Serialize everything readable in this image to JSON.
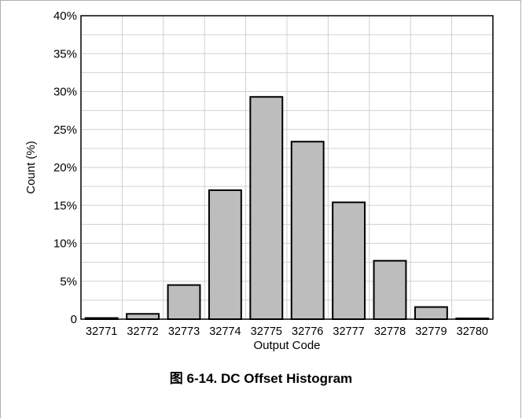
{
  "chart_data": {
    "type": "bar",
    "categories": [
      "32771",
      "32772",
      "32773",
      "32774",
      "32775",
      "32776",
      "32777",
      "32778",
      "32779",
      "32780"
    ],
    "values": [
      0.15,
      0.7,
      4.5,
      17.0,
      29.3,
      23.4,
      15.4,
      7.7,
      1.6,
      0.1
    ],
    "ylim": [
      0,
      40
    ],
    "yticks": [
      "0",
      "5%",
      "10%",
      "15%",
      "20%",
      "25%",
      "30%",
      "35%",
      "40%"
    ],
    "ylabel": "Count (%)",
    "xlabel": "Output Code",
    "grid": true,
    "bar_color": "#bdbdbd",
    "bar_edge_color": "#000000",
    "grid_color": "#d0d0d0"
  },
  "caption": "图 6-14. DC Offset Histogram"
}
